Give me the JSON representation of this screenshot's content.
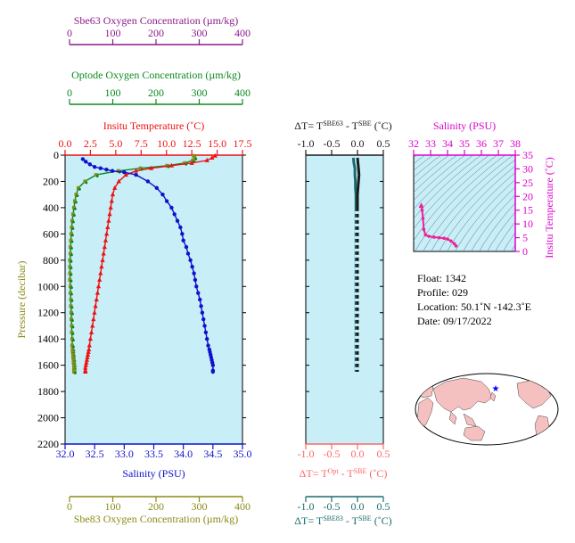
{
  "colors": {
    "plot_bg": "#c8eef8",
    "sbe63": "#8b1a8b",
    "optode": "#0b8a1f",
    "sbe83": "#8b8b1a",
    "temperature": "#ee1111",
    "salinity": "#1111cc",
    "delta_sbe63": "#1a1a1a",
    "delta_opt": "#ff6666",
    "delta_sbe83": "#1a6b6b",
    "ts_salinity": "#dd00cc",
    "ts_curve": "#ee2299",
    "ts_isopycnal": "#5a7080",
    "map_land": "#f4c0c0",
    "map_ocean": "#ffffff",
    "map_marker": "#0000ff"
  },
  "axes_labels": {
    "sbe63_title": "Sbe63 Oxygen Concentration (µm/kg)",
    "optode_title": "Optode Oxygen Concentration (µm/kg)",
    "temp_title": "Insitu Temperature (˚C)",
    "pressure_title": "Pressure (decibar)",
    "salinity_title": "Salinity (PSU)",
    "sbe83_title": "Sbe83 Oxygen Concentration (µm/kg)",
    "delta_sbe63_title": "ΔT= T^SBE63 - T^SBE (˚C)",
    "delta_opt_title": "ΔT= T^Opt - T^SBE (˚C)",
    "delta_sbe83_title": "ΔT= T^SBE83 - T^SBE (˚C)",
    "ts_salinity_title": "Salinity (PSU)",
    "ts_temp_title": "Insitu Temperature (˚C)"
  },
  "info": {
    "float_line": "Float:  1342",
    "profile_line": "Profile:  029",
    "location_line": "Location:  50.1˚N  -142.3˚E",
    "date_line": "Date:  09/17/2022"
  },
  "chart_data": [
    {
      "id": "profile",
      "type": "line",
      "axes": {
        "pressure": {
          "range": [
            0,
            2200
          ],
          "ticks": [
            0,
            200,
            400,
            600,
            800,
            1000,
            1200,
            1400,
            1600,
            1800,
            2000,
            2200
          ],
          "inverted": true
        },
        "temperature": {
          "range": [
            0,
            17.5
          ],
          "ticks": [
            0,
            2.5,
            5,
            7.5,
            10,
            12.5,
            15,
            17.5
          ],
          "tick_labels": [
            "0.0",
            "2.5",
            "5.0",
            "7.5",
            "10.0",
            "12.5",
            "15.0",
            "17.5"
          ]
        },
        "salinity": {
          "range": [
            32.0,
            35.0
          ],
          "ticks": [
            32.0,
            32.5,
            33.0,
            33.5,
            34.0,
            34.5,
            35.0
          ],
          "tick_labels": [
            "32.0",
            "32.5",
            "33.0",
            "33.5",
            "34.0",
            "34.5",
            "35.0"
          ]
        },
        "oxygen": {
          "range": [
            0,
            400
          ],
          "ticks": [
            0,
            100,
            200,
            300,
            400
          ],
          "tick_labels": [
            "0",
            "100",
            "200",
            "300",
            "400"
          ]
        }
      },
      "series": [
        {
          "name": "temperature",
          "axis": "temperature",
          "x": [
            14.8,
            14.5,
            14.0,
            12.5,
            10.5,
            8.5,
            7.0,
            6.0,
            5.3,
            4.9,
            4.7,
            4.6,
            4.5,
            4.4,
            4.3,
            4.2,
            4.1,
            4.0,
            3.9,
            3.8,
            3.7,
            3.6,
            3.5,
            3.4,
            3.3,
            3.2,
            3.1,
            3.0,
            2.9,
            2.8,
            2.7,
            2.6,
            2.5,
            2.4,
            2.35,
            2.3,
            2.25,
            2.2,
            2.15,
            2.1,
            2.05,
            2.0,
            2.0,
            2.0
          ],
          "y": [
            5,
            20,
            40,
            60,
            80,
            100,
            120,
            150,
            200,
            250,
            300,
            350,
            400,
            450,
            500,
            550,
            600,
            650,
            700,
            750,
            800,
            850,
            900,
            950,
            1000,
            1050,
            1100,
            1150,
            1200,
            1250,
            1300,
            1350,
            1400,
            1450,
            1480,
            1500,
            1520,
            1540,
            1560,
            1580,
            1600,
            1620,
            1640,
            1650
          ]
        },
        {
          "name": "salinity",
          "axis": "salinity",
          "x": [
            32.3,
            32.35,
            32.42,
            32.5,
            32.6,
            32.7,
            32.8,
            33.0,
            33.2,
            33.4,
            33.55,
            33.65,
            33.72,
            33.8,
            33.85,
            33.9,
            33.95,
            33.98,
            34.0,
            34.05,
            34.08,
            34.12,
            34.15,
            34.18,
            34.2,
            34.22,
            34.25,
            34.28,
            34.3,
            34.32,
            34.34,
            34.36,
            34.38,
            34.4,
            34.42,
            34.44,
            34.45,
            34.46,
            34.47,
            34.48,
            34.49,
            34.5,
            34.5,
            34.5
          ],
          "y": [
            30,
            50,
            70,
            90,
            100,
            110,
            120,
            130,
            150,
            200,
            250,
            300,
            350,
            400,
            450,
            500,
            550,
            600,
            650,
            700,
            750,
            800,
            850,
            900,
            950,
            1000,
            1050,
            1100,
            1150,
            1200,
            1250,
            1300,
            1350,
            1400,
            1450,
            1480,
            1500,
            1520,
            1540,
            1560,
            1580,
            1600,
            1640,
            1650
          ]
        },
        {
          "name": "oxygen",
          "axis": "oxygen",
          "x": [
            290,
            292,
            288,
            270,
            230,
            170,
            120,
            70,
            45,
            30,
            25,
            22,
            20,
            18,
            16,
            15,
            14,
            13,
            12,
            12,
            11,
            11,
            11,
            11,
            12,
            12,
            13,
            13,
            14,
            14,
            15,
            15,
            16,
            16,
            17,
            17,
            18,
            18,
            19,
            19,
            20,
            20,
            20,
            20
          ],
          "y": [
            5,
            20,
            40,
            60,
            80,
            100,
            120,
            150,
            200,
            250,
            300,
            350,
            400,
            450,
            500,
            550,
            600,
            650,
            700,
            750,
            800,
            850,
            900,
            950,
            1000,
            1050,
            1100,
            1150,
            1200,
            1250,
            1300,
            1350,
            1400,
            1450,
            1480,
            1500,
            1520,
            1540,
            1560,
            1580,
            1600,
            1620,
            1640,
            1650
          ]
        }
      ]
    },
    {
      "id": "delta_t",
      "type": "line",
      "axes": {
        "x": {
          "range": [
            -1.0,
            0.5
          ],
          "ticks": [
            -1.0,
            -0.5,
            0.0,
            0.5
          ],
          "tick_labels": [
            "-1.0",
            "-0.5",
            "0.0",
            "0.5"
          ]
        }
      },
      "series": [
        {
          "name": "SBE83",
          "x": [
            -0.08,
            -0.07,
            -0.05,
            -0.05,
            -0.04,
            -0.04,
            -0.03,
            -0.03,
            -0.03,
            -0.03,
            -0.03,
            -0.03,
            -0.03,
            -0.03,
            -0.03,
            -0.03,
            -0.03
          ],
          "y": [
            20,
            60,
            100,
            150,
            200,
            250,
            300,
            350,
            400,
            600,
            800,
            1000,
            1200,
            1400,
            1500,
            1600,
            1650
          ]
        },
        {
          "name": "SBE63",
          "x": [
            0.0,
            0.01,
            0.02,
            0.03,
            0.02,
            0.01,
            0.0,
            0.0,
            0.0,
            0.0,
            0.0,
            0.0,
            0.0,
            0.0,
            0.0,
            0.0,
            0.0
          ],
          "y": [
            20,
            60,
            100,
            150,
            200,
            250,
            300,
            350,
            400,
            600,
            800,
            1000,
            1200,
            1400,
            1500,
            1600,
            1650
          ]
        }
      ]
    },
    {
      "id": "ts_diagram",
      "type": "line",
      "axes": {
        "salinity": {
          "range": [
            32,
            38
          ],
          "ticks": [
            32,
            33,
            34,
            35,
            36,
            37,
            38
          ],
          "tick_labels": [
            "32",
            "33",
            "34",
            "35",
            "36",
            "37",
            "38"
          ]
        },
        "temperature": {
          "range": [
            0,
            35
          ],
          "ticks": [
            0,
            5,
            10,
            15,
            20,
            25,
            30,
            35
          ],
          "tick_labels": [
            "0",
            "5",
            "10",
            "15",
            "20",
            "25",
            "30",
            "35"
          ]
        }
      },
      "series": [
        {
          "name": "ts_profile",
          "x": [
            32.45,
            32.5,
            32.55,
            32.6,
            32.7,
            32.9,
            33.2,
            33.5,
            33.8,
            34.0,
            34.2,
            34.4,
            34.5
          ],
          "y": [
            16.5,
            15.0,
            12.0,
            8.0,
            6.0,
            5.5,
            5.2,
            5.0,
            4.8,
            4.5,
            3.8,
            2.8,
            2.0
          ]
        }
      ]
    }
  ]
}
